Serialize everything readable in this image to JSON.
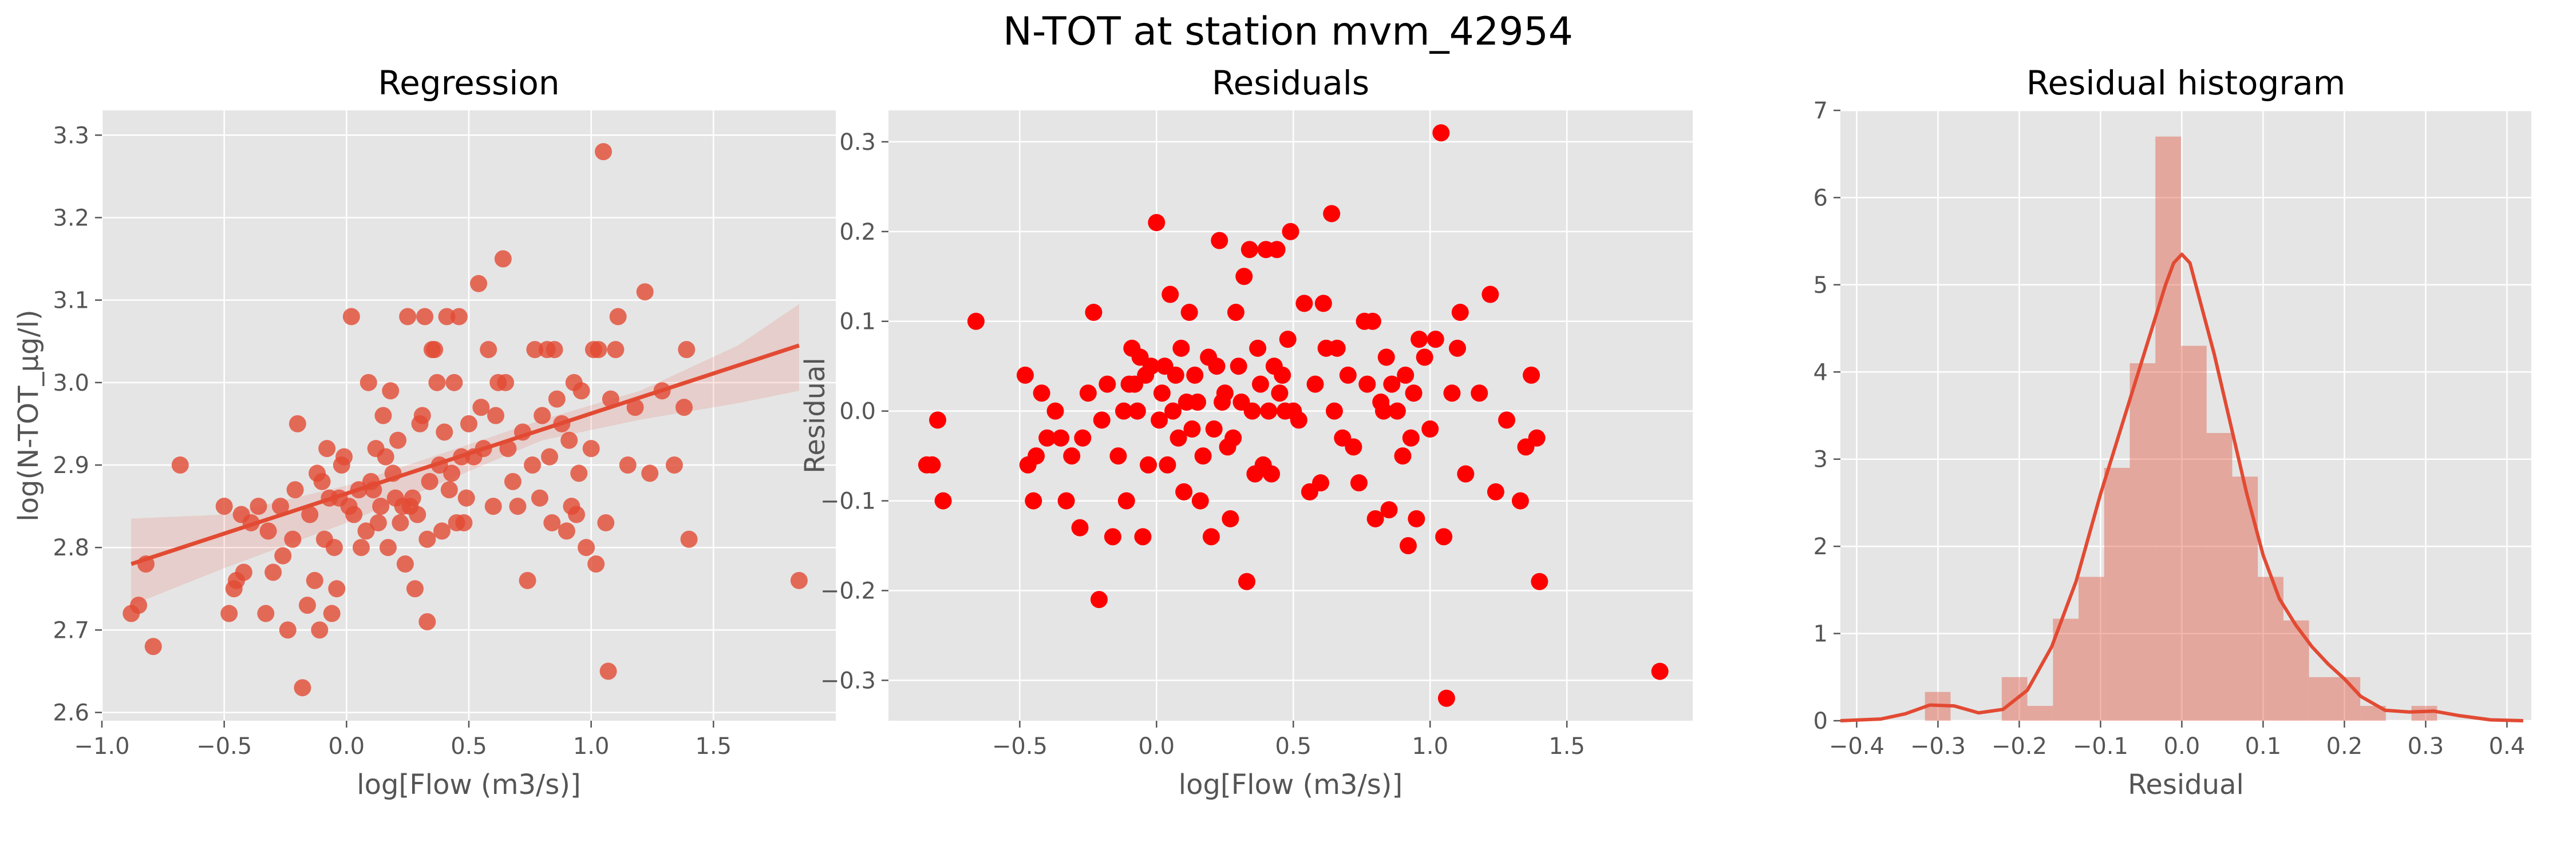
{
  "suptitle": "N-TOT at station mvm_42954",
  "colors": {
    "axes_bg": "#e5e5e5",
    "grid": "#ffffff",
    "regression": "#e24a33",
    "residual_points": "#ff0000",
    "histogram_fill": "#e24a33",
    "kde_line": "#e24a33"
  },
  "chart_data": [
    {
      "type": "scatter",
      "title": "Regression",
      "xlabel": "log[Flow (m3/s)]",
      "ylabel": "log(N-TOT_µg/l)",
      "xlim": [
        -1.0,
        2.0
      ],
      "ylim": [
        2.59,
        3.33
      ],
      "xticks": [
        -1.0,
        -0.5,
        0.0,
        0.5,
        1.0,
        1.5
      ],
      "xtick_labels": [
        "−1.0",
        "−0.5",
        "0.0",
        "0.5",
        "1.0",
        "1.5"
      ],
      "yticks": [
        2.6,
        2.7,
        2.8,
        2.9,
        3.0,
        3.1,
        3.2,
        3.3
      ],
      "ytick_labels": [
        "2.6",
        "2.7",
        "2.8",
        "2.9",
        "3.0",
        "3.1",
        "3.2",
        "3.3"
      ],
      "grid": true,
      "points": [
        [
          -0.88,
          2.72
        ],
        [
          -0.85,
          2.73
        ],
        [
          -0.82,
          2.78
        ],
        [
          -0.79,
          2.68
        ],
        [
          -0.68,
          2.9
        ],
        [
          -0.5,
          2.85
        ],
        [
          -0.48,
          2.72
        ],
        [
          -0.46,
          2.75
        ],
        [
          -0.45,
          2.76
        ],
        [
          -0.43,
          2.84
        ],
        [
          -0.42,
          2.77
        ],
        [
          -0.39,
          2.83
        ],
        [
          -0.36,
          2.85
        ],
        [
          -0.33,
          2.72
        ],
        [
          -0.32,
          2.82
        ],
        [
          -0.3,
          2.77
        ],
        [
          -0.27,
          2.85
        ],
        [
          -0.26,
          2.79
        ],
        [
          -0.24,
          2.7
        ],
        [
          -0.22,
          2.81
        ],
        [
          -0.21,
          2.87
        ],
        [
          -0.2,
          2.95
        ],
        [
          -0.18,
          2.63
        ],
        [
          -0.16,
          2.73
        ],
        [
          -0.15,
          2.84
        ],
        [
          -0.13,
          2.76
        ],
        [
          -0.12,
          2.89
        ],
        [
          -0.11,
          2.7
        ],
        [
          -0.1,
          2.88
        ],
        [
          -0.09,
          2.81
        ],
        [
          -0.08,
          2.92
        ],
        [
          -0.07,
          2.86
        ],
        [
          -0.06,
          2.72
        ],
        [
          -0.05,
          2.8
        ],
        [
          -0.04,
          2.75
        ],
        [
          -0.03,
          2.86
        ],
        [
          -0.02,
          2.9
        ],
        [
          -0.01,
          2.91
        ],
        [
          0.01,
          2.85
        ],
        [
          0.02,
          3.08
        ],
        [
          0.03,
          2.84
        ],
        [
          0.05,
          2.87
        ],
        [
          0.06,
          2.8
        ],
        [
          0.08,
          2.82
        ],
        [
          0.09,
          3.0
        ],
        [
          0.1,
          2.88
        ],
        [
          0.11,
          2.87
        ],
        [
          0.12,
          2.92
        ],
        [
          0.13,
          2.83
        ],
        [
          0.14,
          2.85
        ],
        [
          0.15,
          2.96
        ],
        [
          0.16,
          2.91
        ],
        [
          0.17,
          2.8
        ],
        [
          0.18,
          2.99
        ],
        [
          0.19,
          2.89
        ],
        [
          0.2,
          2.86
        ],
        [
          0.21,
          2.93
        ],
        [
          0.22,
          2.83
        ],
        [
          0.23,
          2.85
        ],
        [
          0.24,
          2.78
        ],
        [
          0.25,
          3.08
        ],
        [
          0.26,
          2.85
        ],
        [
          0.27,
          2.86
        ],
        [
          0.28,
          2.75
        ],
        [
          0.29,
          2.84
        ],
        [
          0.3,
          2.95
        ],
        [
          0.31,
          2.96
        ],
        [
          0.32,
          3.08
        ],
        [
          0.33,
          2.81
        ],
        [
          0.33,
          2.71
        ],
        [
          0.34,
          2.88
        ],
        [
          0.35,
          3.04
        ],
        [
          0.36,
          3.04
        ],
        [
          0.37,
          3.0
        ],
        [
          0.38,
          2.9
        ],
        [
          0.39,
          2.82
        ],
        [
          0.4,
          2.94
        ],
        [
          0.41,
          3.08
        ],
        [
          0.42,
          2.87
        ],
        [
          0.43,
          2.89
        ],
        [
          0.44,
          3.0
        ],
        [
          0.45,
          2.83
        ],
        [
          0.46,
          3.08
        ],
        [
          0.47,
          2.91
        ],
        [
          0.48,
          2.83
        ],
        [
          0.49,
          2.86
        ],
        [
          0.5,
          2.95
        ],
        [
          0.52,
          2.91
        ],
        [
          0.54,
          3.12
        ],
        [
          0.55,
          2.97
        ],
        [
          0.56,
          2.92
        ],
        [
          0.58,
          3.04
        ],
        [
          0.6,
          2.85
        ],
        [
          0.61,
          2.96
        ],
        [
          0.62,
          3.0
        ],
        [
          0.64,
          3.15
        ],
        [
          0.65,
          3.0
        ],
        [
          0.66,
          2.92
        ],
        [
          0.68,
          2.88
        ],
        [
          0.7,
          2.85
        ],
        [
          0.72,
          2.94
        ],
        [
          0.74,
          2.76
        ],
        [
          0.76,
          2.9
        ],
        [
          0.77,
          3.04
        ],
        [
          0.79,
          2.86
        ],
        [
          0.8,
          2.96
        ],
        [
          0.82,
          3.04
        ],
        [
          0.83,
          2.91
        ],
        [
          0.84,
          2.83
        ],
        [
          0.85,
          3.04
        ],
        [
          0.86,
          2.98
        ],
        [
          0.88,
          2.95
        ],
        [
          0.9,
          2.82
        ],
        [
          0.91,
          2.93
        ],
        [
          0.92,
          2.85
        ],
        [
          0.93,
          3.0
        ],
        [
          0.94,
          2.84
        ],
        [
          0.95,
          2.89
        ],
        [
          0.96,
          2.99
        ],
        [
          0.98,
          2.8
        ],
        [
          1.0,
          2.92
        ],
        [
          1.01,
          3.04
        ],
        [
          1.02,
          2.78
        ],
        [
          1.03,
          3.04
        ],
        [
          1.05,
          3.28
        ],
        [
          1.06,
          2.83
        ],
        [
          1.07,
          2.65
        ],
        [
          1.08,
          2.98
        ],
        [
          1.1,
          3.04
        ],
        [
          1.11,
          3.08
        ],
        [
          1.15,
          2.9
        ],
        [
          1.18,
          2.97
        ],
        [
          1.22,
          3.11
        ],
        [
          1.24,
          2.89
        ],
        [
          1.29,
          2.99
        ],
        [
          1.34,
          2.9
        ],
        [
          1.38,
          2.97
        ],
        [
          1.39,
          3.04
        ],
        [
          1.4,
          2.81
        ],
        [
          1.85,
          2.76
        ]
      ],
      "regression_line": {
        "x": [
          -0.88,
          1.85
        ],
        "y": [
          2.78,
          3.045
        ]
      },
      "confidence_band": {
        "x": [
          -0.88,
          -0.5,
          0.0,
          0.4,
          0.8,
          1.2,
          1.6,
          1.85
        ],
        "lower": [
          2.73,
          2.775,
          2.83,
          2.88,
          2.93,
          2.955,
          2.975,
          2.99
        ],
        "upper": [
          2.835,
          2.84,
          2.875,
          2.915,
          2.955,
          2.99,
          3.045,
          3.095
        ]
      }
    },
    {
      "type": "scatter",
      "title": "Residuals",
      "xlabel": "log[Flow (m3/s)]",
      "ylabel": "Residual",
      "xlim": [
        -0.98,
        1.96
      ],
      "ylim": [
        -0.345,
        0.335
      ],
      "xticks": [
        -0.5,
        0.0,
        0.5,
        1.0,
        1.5
      ],
      "xtick_labels": [
        "−0.5",
        "0.0",
        "0.5",
        "1.0",
        "1.5"
      ],
      "yticks": [
        -0.3,
        -0.2,
        -0.1,
        0.0,
        0.1,
        0.2,
        0.3
      ],
      "ytick_labels": [
        "−0.3",
        "−0.2",
        "−0.1",
        "0.0",
        "0.1",
        "0.2",
        "0.3"
      ],
      "grid": true,
      "points": [
        [
          -0.84,
          -0.06
        ],
        [
          -0.82,
          -0.06
        ],
        [
          -0.8,
          -0.01
        ],
        [
          -0.78,
          -0.1
        ],
        [
          -0.66,
          0.1
        ],
        [
          -0.48,
          0.04
        ],
        [
          -0.47,
          -0.06
        ],
        [
          -0.45,
          -0.1
        ],
        [
          -0.44,
          -0.05
        ],
        [
          -0.42,
          0.02
        ],
        [
          -0.4,
          -0.03
        ],
        [
          -0.37,
          0.0
        ],
        [
          -0.35,
          -0.03
        ],
        [
          -0.33,
          -0.1
        ],
        [
          -0.31,
          -0.05
        ],
        [
          -0.28,
          -0.13
        ],
        [
          -0.27,
          -0.03
        ],
        [
          -0.25,
          0.02
        ],
        [
          -0.23,
          0.11
        ],
        [
          -0.21,
          -0.21
        ],
        [
          -0.2,
          -0.01
        ],
        [
          -0.18,
          0.03
        ],
        [
          -0.16,
          -0.14
        ],
        [
          -0.14,
          -0.05
        ],
        [
          -0.12,
          0.0
        ],
        [
          -0.11,
          -0.1
        ],
        [
          -0.1,
          0.03
        ],
        [
          -0.09,
          0.07
        ],
        [
          -0.08,
          0.03
        ],
        [
          -0.07,
          0.0
        ],
        [
          -0.06,
          0.06
        ],
        [
          -0.05,
          -0.14
        ],
        [
          -0.04,
          0.04
        ],
        [
          -0.03,
          -0.06
        ],
        [
          -0.02,
          0.05
        ],
        [
          0.0,
          0.21
        ],
        [
          0.01,
          -0.01
        ],
        [
          0.02,
          0.02
        ],
        [
          0.03,
          0.05
        ],
        [
          0.04,
          -0.06
        ],
        [
          0.05,
          0.13
        ],
        [
          0.06,
          0.0
        ],
        [
          0.07,
          0.04
        ],
        [
          0.08,
          -0.03
        ],
        [
          0.09,
          0.07
        ],
        [
          0.1,
          -0.09
        ],
        [
          0.11,
          0.01
        ],
        [
          0.12,
          0.11
        ],
        [
          0.13,
          -0.02
        ],
        [
          0.14,
          0.04
        ],
        [
          0.15,
          0.01
        ],
        [
          0.16,
          -0.1
        ],
        [
          0.17,
          -0.05
        ],
        [
          0.19,
          0.06
        ],
        [
          0.2,
          -0.14
        ],
        [
          0.21,
          -0.02
        ],
        [
          0.22,
          0.05
        ],
        [
          0.23,
          0.19
        ],
        [
          0.24,
          0.01
        ],
        [
          0.25,
          0.02
        ],
        [
          0.26,
          -0.04
        ],
        [
          0.27,
          -0.12
        ],
        [
          0.28,
          -0.03
        ],
        [
          0.29,
          0.11
        ],
        [
          0.3,
          0.05
        ],
        [
          0.31,
          0.01
        ],
        [
          0.32,
          0.15
        ],
        [
          0.33,
          -0.19
        ],
        [
          0.34,
          0.18
        ],
        [
          0.35,
          0.0
        ],
        [
          0.36,
          -0.07
        ],
        [
          0.37,
          0.07
        ],
        [
          0.38,
          0.03
        ],
        [
          0.39,
          -0.06
        ],
        [
          0.4,
          0.18
        ],
        [
          0.41,
          0.0
        ],
        [
          0.42,
          -0.07
        ],
        [
          0.43,
          0.05
        ],
        [
          0.44,
          0.18
        ],
        [
          0.45,
          0.02
        ],
        [
          0.46,
          0.04
        ],
        [
          0.47,
          0.0
        ],
        [
          0.48,
          0.08
        ],
        [
          0.49,
          0.2
        ],
        [
          0.5,
          0.0
        ],
        [
          0.52,
          -0.01
        ],
        [
          0.54,
          0.12
        ],
        [
          0.56,
          -0.09
        ],
        [
          0.58,
          0.03
        ],
        [
          0.6,
          -0.08
        ],
        [
          0.61,
          0.12
        ],
        [
          0.62,
          0.07
        ],
        [
          0.64,
          0.22
        ],
        [
          0.65,
          0.0
        ],
        [
          0.66,
          0.07
        ],
        [
          0.68,
          -0.03
        ],
        [
          0.7,
          0.04
        ],
        [
          0.72,
          -0.04
        ],
        [
          0.74,
          -0.08
        ],
        [
          0.76,
          0.1
        ],
        [
          0.77,
          0.03
        ],
        [
          0.79,
          0.1
        ],
        [
          0.8,
          -0.12
        ],
        [
          0.82,
          0.01
        ],
        [
          0.83,
          0.0
        ],
        [
          0.84,
          0.06
        ],
        [
          0.85,
          -0.11
        ],
        [
          0.86,
          0.03
        ],
        [
          0.88,
          0.0
        ],
        [
          0.9,
          -0.05
        ],
        [
          0.91,
          0.04
        ],
        [
          0.92,
          -0.15
        ],
        [
          0.93,
          -0.03
        ],
        [
          0.94,
          0.02
        ],
        [
          0.95,
          -0.12
        ],
        [
          0.96,
          0.08
        ],
        [
          0.98,
          0.06
        ],
        [
          1.0,
          -0.02
        ],
        [
          1.02,
          0.08
        ],
        [
          1.04,
          0.31
        ],
        [
          1.05,
          -0.14
        ],
        [
          1.06,
          -0.32
        ],
        [
          1.08,
          0.02
        ],
        [
          1.1,
          0.07
        ],
        [
          1.11,
          0.11
        ],
        [
          1.13,
          -0.07
        ],
        [
          1.18,
          0.02
        ],
        [
          1.22,
          0.13
        ],
        [
          1.24,
          -0.09
        ],
        [
          1.28,
          -0.01
        ],
        [
          1.33,
          -0.1
        ],
        [
          1.35,
          -0.04
        ],
        [
          1.37,
          0.04
        ],
        [
          1.39,
          -0.03
        ],
        [
          1.4,
          -0.19
        ],
        [
          1.84,
          -0.29
        ]
      ]
    },
    {
      "type": "bar",
      "title": "Residual histogram",
      "xlabel": "Residual",
      "ylabel": "",
      "xlim": [
        -0.42,
        0.43
      ],
      "ylim": [
        0,
        7
      ],
      "xticks": [
        -0.4,
        -0.3,
        -0.2,
        -0.1,
        0.0,
        0.1,
        0.2,
        0.3,
        0.4
      ],
      "xtick_labels": [
        "−0.4",
        "−0.3",
        "−0.2",
        "−0.1",
        "0.0",
        "0.1",
        "0.2",
        "0.3",
        "0.4"
      ],
      "yticks": [
        0,
        1,
        2,
        3,
        4,
        5,
        6,
        7
      ],
      "ytick_labels": [
        "0",
        "1",
        "2",
        "3",
        "4",
        "5",
        "6",
        "7"
      ],
      "grid": true,
      "bin_edges": [
        -0.316,
        -0.2845,
        -0.253,
        -0.2215,
        -0.19,
        -0.1585,
        -0.127,
        -0.0955,
        -0.064,
        -0.0325,
        -0.001,
        0.0305,
        0.062,
        0.0935,
        0.125,
        0.1565,
        0.188,
        0.2195,
        0.251,
        0.2825,
        0.314
      ],
      "values": [
        0.33,
        0.0,
        0.0,
        0.5,
        0.17,
        1.17,
        1.65,
        2.9,
        4.1,
        6.7,
        4.3,
        3.3,
        2.8,
        1.65,
        1.15,
        0.5,
        0.5,
        0.17,
        0.0,
        0.17
      ],
      "kde": {
        "x": [
          -0.42,
          -0.37,
          -0.34,
          -0.31,
          -0.28,
          -0.25,
          -0.22,
          -0.19,
          -0.16,
          -0.13,
          -0.1,
          -0.08,
          -0.06,
          -0.04,
          -0.02,
          -0.01,
          0.0,
          0.01,
          0.02,
          0.04,
          0.06,
          0.08,
          0.1,
          0.12,
          0.14,
          0.16,
          0.18,
          0.2,
          0.22,
          0.25,
          0.28,
          0.31,
          0.34,
          0.38,
          0.42
        ],
        "y": [
          0.0,
          0.02,
          0.08,
          0.18,
          0.17,
          0.09,
          0.13,
          0.35,
          0.85,
          1.6,
          2.6,
          3.2,
          3.8,
          4.4,
          5.0,
          5.25,
          5.35,
          5.25,
          4.9,
          4.2,
          3.4,
          2.6,
          1.9,
          1.4,
          1.1,
          0.85,
          0.65,
          0.48,
          0.28,
          0.12,
          0.1,
          0.11,
          0.06,
          0.01,
          0.0
        ]
      }
    }
  ]
}
